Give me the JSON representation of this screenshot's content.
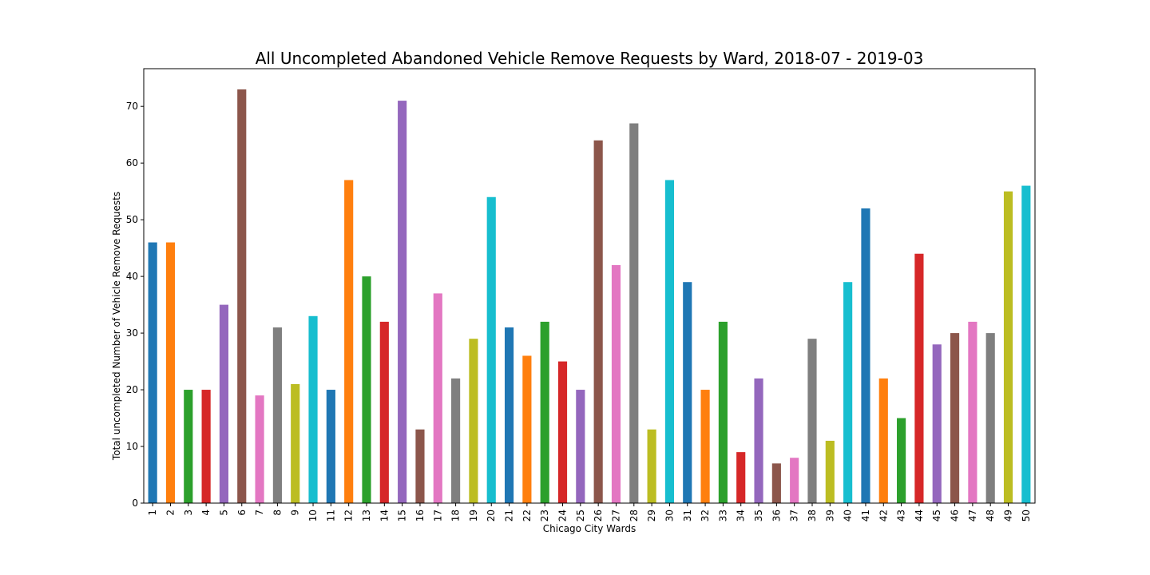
{
  "chart_data": {
    "type": "bar",
    "title": "All Uncompleted Abandoned Vehicle Remove Requests by Ward, 2018-07 - 2019-03",
    "xlabel": "Chicago City Wards",
    "ylabel": "Total uncompleted Number of Vehicle Remove Requests",
    "ylim": [
      0,
      76.65
    ],
    "yticks": [
      0,
      10,
      20,
      30,
      40,
      50,
      60,
      70
    ],
    "grid": false,
    "legend": "none",
    "categories": [
      "1",
      "2",
      "3",
      "4",
      "5",
      "6",
      "7",
      "8",
      "9",
      "10",
      "11",
      "12",
      "13",
      "14",
      "15",
      "16",
      "17",
      "18",
      "19",
      "20",
      "21",
      "22",
      "23",
      "24",
      "25",
      "26",
      "27",
      "28",
      "29",
      "30",
      "31",
      "32",
      "33",
      "34",
      "35",
      "36",
      "37",
      "38",
      "39",
      "40",
      "41",
      "42",
      "43",
      "44",
      "45",
      "46",
      "47",
      "48",
      "49",
      "50"
    ],
    "values": [
      46,
      46,
      20,
      20,
      35,
      73,
      19,
      31,
      21,
      33,
      20,
      57,
      40,
      32,
      71,
      13,
      37,
      22,
      29,
      54,
      31,
      26,
      32,
      25,
      20,
      64,
      42,
      67,
      13,
      57,
      39,
      20,
      32,
      9,
      22,
      7,
      8,
      29,
      11,
      39,
      52,
      22,
      15,
      44,
      28,
      30,
      32,
      30,
      55,
      56
    ],
    "colors": [
      "#1f77b4",
      "#ff7f0e",
      "#2ca02c",
      "#d62728",
      "#9467bd",
      "#8c564b",
      "#e377c2",
      "#7f7f7f",
      "#bcbd22",
      "#17becf"
    ]
  }
}
